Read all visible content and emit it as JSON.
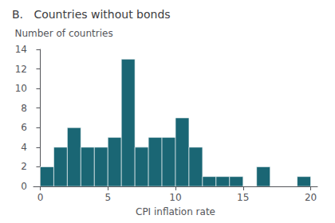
{
  "chart_data": {
    "type": "histogram",
    "title": "B.   Countries without bonds",
    "ylabel": "Number of countries",
    "xlabel": "CPI inflation rate",
    "bins": [
      0,
      1,
      2,
      3,
      4,
      5,
      6,
      7,
      8,
      9,
      10,
      11,
      12,
      13,
      14,
      15,
      16,
      17,
      18,
      19,
      20
    ],
    "values": [
      2,
      4,
      6,
      4,
      4,
      5,
      13,
      4,
      5,
      5,
      7,
      4,
      1,
      1,
      1,
      0,
      2,
      0,
      0,
      1
    ],
    "color": "#1a6674",
    "xlim": [
      -0.5,
      20.5
    ],
    "xticks": [
      0,
      5,
      10,
      15,
      20
    ],
    "ylim": [
      0,
      14
    ],
    "yticks": [
      0,
      2,
      4,
      6,
      8,
      10,
      12,
      14
    ],
    "grid": false
  }
}
